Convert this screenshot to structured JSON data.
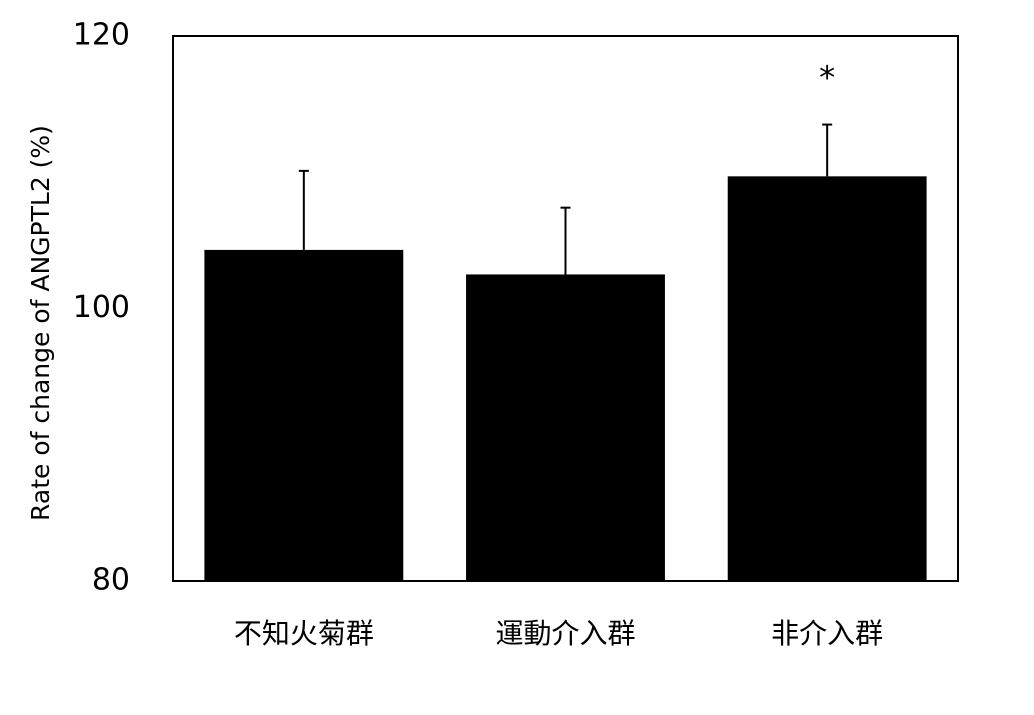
{
  "chart_data": {
    "type": "bar",
    "y_label": "Rate of change of ANGPTL2 (%)",
    "categories": [
      "不知火菊群",
      "運動介入群",
      "非介入群"
    ],
    "values": [
      104.3,
      102.5,
      109.7
    ],
    "errors": [
      5.8,
      4.9,
      3.8
    ],
    "color": "#000000",
    "annotation": "*",
    "ylim": [
      80,
      120
    ],
    "yticks": [
      80,
      100,
      120
    ],
    "grid": false
  }
}
